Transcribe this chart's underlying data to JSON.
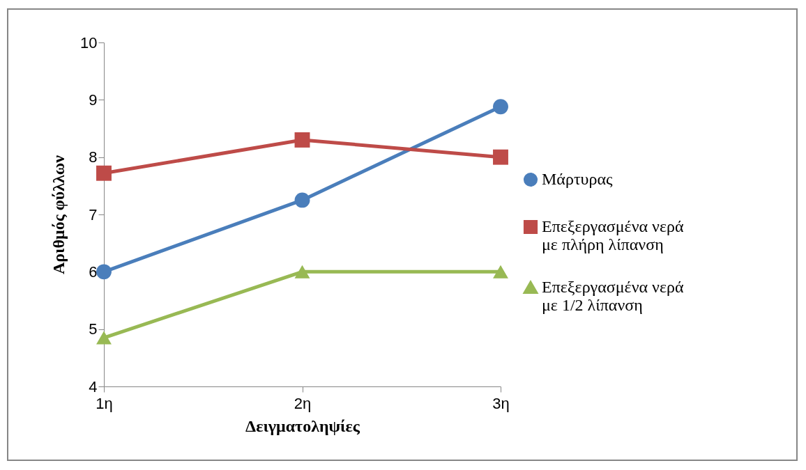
{
  "chart_data": {
    "type": "line",
    "xlabel": "Δειγματοληψίες",
    "ylabel": "Αριθμός φύλλων",
    "categories": [
      "1η",
      "2η",
      "3η"
    ],
    "ylim": [
      4,
      10
    ],
    "yticks": [
      4,
      5,
      6,
      7,
      8,
      9,
      10
    ],
    "grid": false,
    "legend": "right",
    "series": [
      {
        "name": "Μάρτυρας",
        "color": "#4a7ebb",
        "marker": "circle",
        "values": [
          6.0,
          7.25,
          8.88
        ]
      },
      {
        "name": "Επεξεργασμένα νερά με πλήρη λίπανση",
        "color": "#be4b48",
        "marker": "square",
        "values": [
          7.72,
          8.3,
          8.0
        ]
      },
      {
        "name": "Επεξεργασμένα νερά με 1/2 λίπανση",
        "color": "#98b954",
        "marker": "triangle",
        "values": [
          4.85,
          6.0,
          6.0
        ]
      }
    ]
  }
}
